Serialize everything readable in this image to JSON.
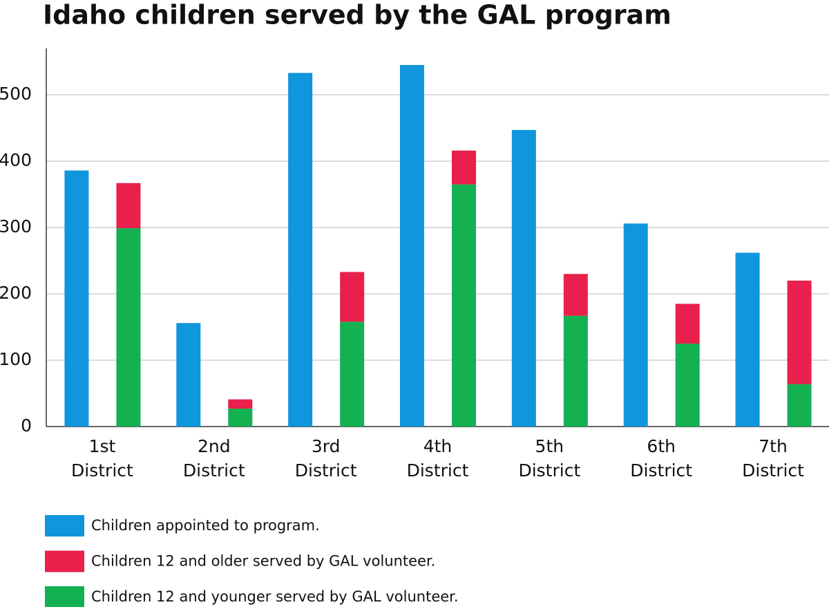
{
  "chart_data": {
    "type": "bar",
    "title": "Idaho children served by the GAL program",
    "categories": [
      "1st District",
      "2nd District",
      "3rd District",
      "4th District",
      "5th District",
      "6th District",
      "7th District"
    ],
    "series": [
      {
        "name": "Children appointed to program.",
        "color": "#0f96dc",
        "values": [
          386,
          156,
          533,
          545,
          447,
          306,
          262
        ]
      },
      {
        "name": "Children 12 and older served by GAL volunteer.",
        "color": "#e8204b",
        "values": [
          68,
          14,
          75,
          51,
          63,
          60,
          156
        ]
      },
      {
        "name": "Children 12 and younger served by GAL volunteer.",
        "color": "#13b150",
        "values": [
          299,
          27,
          158,
          365,
          167,
          125,
          64
        ]
      }
    ],
    "ylim": [
      0,
      570
    ],
    "yticks": [
      0,
      100,
      200,
      300,
      400,
      500
    ],
    "grid": true
  }
}
